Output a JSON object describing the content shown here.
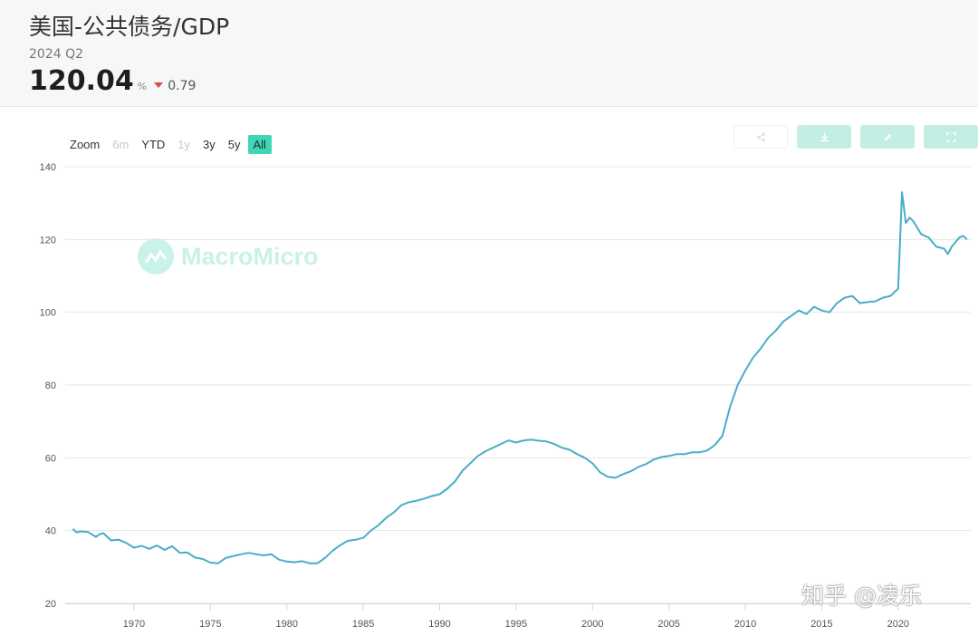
{
  "header": {
    "title": "美国-公共债务/GDP",
    "period": "2024 Q2",
    "value": "120.04",
    "unit": "%",
    "change": "0.79",
    "change_direction": "down",
    "change_color": "#e0483e"
  },
  "zoom": {
    "label": "Zoom",
    "options": [
      {
        "label": "6m",
        "enabled": false,
        "active": false
      },
      {
        "label": "YTD",
        "enabled": true,
        "active": false
      },
      {
        "label": "1y",
        "enabled": false,
        "active": false
      },
      {
        "label": "3y",
        "enabled": true,
        "active": false
      },
      {
        "label": "5y",
        "enabled": true,
        "active": false
      },
      {
        "label": "All",
        "enabled": true,
        "active": true
      }
    ],
    "active_color": "#3fd6b6"
  },
  "tools": [
    {
      "icon": "share-icon"
    },
    {
      "icon": "download-icon"
    },
    {
      "icon": "edit-icon"
    },
    {
      "icon": "fullscreen-icon"
    }
  ],
  "watermark": {
    "text": "MacroMicro"
  },
  "credit": "知乎 @凌乐",
  "chart_data": {
    "type": "line",
    "title": "",
    "xlabel": "",
    "ylabel": "",
    "xlim": [
      1965.5,
      2024.75
    ],
    "ylim": [
      20,
      140
    ],
    "yticks": [
      20,
      40,
      60,
      80,
      100,
      120,
      140
    ],
    "xticks": [
      1970,
      1975,
      1980,
      1985,
      1990,
      1995,
      2000,
      2005,
      2010,
      2015,
      2020
    ],
    "grid": "horizontal",
    "legend": "none",
    "series": [
      {
        "color": "#48aec6",
        "points": [
          [
            1966.0,
            40.5
          ],
          [
            1966.25,
            39.5
          ],
          [
            1966.5,
            39.8
          ],
          [
            1967.0,
            39.6
          ],
          [
            1967.5,
            38.3
          ],
          [
            1967.75,
            39.0
          ],
          [
            1968.0,
            39.3
          ],
          [
            1968.5,
            37.3
          ],
          [
            1969.0,
            37.5
          ],
          [
            1969.5,
            36.6
          ],
          [
            1970.0,
            35.3
          ],
          [
            1970.5,
            35.8
          ],
          [
            1971.0,
            35.0
          ],
          [
            1971.5,
            35.9
          ],
          [
            1972.0,
            34.7
          ],
          [
            1972.5,
            35.7
          ],
          [
            1973.0,
            33.9
          ],
          [
            1973.5,
            34.0
          ],
          [
            1974.0,
            32.6
          ],
          [
            1974.5,
            32.2
          ],
          [
            1975.0,
            31.2
          ],
          [
            1975.5,
            31.0
          ],
          [
            1976.0,
            32.5
          ],
          [
            1976.5,
            33.0
          ],
          [
            1977.0,
            33.5
          ],
          [
            1977.5,
            33.9
          ],
          [
            1978.0,
            33.5
          ],
          [
            1978.5,
            33.2
          ],
          [
            1979.0,
            33.5
          ],
          [
            1979.5,
            32.0
          ],
          [
            1980.0,
            31.5
          ],
          [
            1980.5,
            31.3
          ],
          [
            1981.0,
            31.6
          ],
          [
            1981.5,
            31.0
          ],
          [
            1982.0,
            31.0
          ],
          [
            1982.5,
            32.5
          ],
          [
            1983.0,
            34.5
          ],
          [
            1983.5,
            36.0
          ],
          [
            1984.0,
            37.2
          ],
          [
            1984.5,
            37.5
          ],
          [
            1985.0,
            38.0
          ],
          [
            1985.5,
            40.0
          ],
          [
            1986.0,
            41.5
          ],
          [
            1986.5,
            43.5
          ],
          [
            1987.0,
            45.0
          ],
          [
            1987.5,
            47.0
          ],
          [
            1988.0,
            47.8
          ],
          [
            1988.5,
            48.2
          ],
          [
            1989.0,
            48.8
          ],
          [
            1989.5,
            49.5
          ],
          [
            1990.0,
            50.0
          ],
          [
            1990.5,
            51.5
          ],
          [
            1991.0,
            53.5
          ],
          [
            1991.5,
            56.5
          ],
          [
            1992.0,
            58.5
          ],
          [
            1992.5,
            60.5
          ],
          [
            1993.0,
            61.8
          ],
          [
            1993.5,
            62.8
          ],
          [
            1994.0,
            63.8
          ],
          [
            1994.5,
            64.8
          ],
          [
            1995.0,
            64.2
          ],
          [
            1995.5,
            64.8
          ],
          [
            1996.0,
            65.0
          ],
          [
            1996.5,
            64.7
          ],
          [
            1997.0,
            64.5
          ],
          [
            1997.5,
            63.8
          ],
          [
            1998.0,
            62.8
          ],
          [
            1998.5,
            62.2
          ],
          [
            1999.0,
            61.0
          ],
          [
            1999.5,
            60.0
          ],
          [
            2000.0,
            58.5
          ],
          [
            2000.5,
            56.0
          ],
          [
            2001.0,
            54.8
          ],
          [
            2001.5,
            54.5
          ],
          [
            2002.0,
            55.5
          ],
          [
            2002.5,
            56.3
          ],
          [
            2003.0,
            57.5
          ],
          [
            2003.5,
            58.3
          ],
          [
            2004.0,
            59.5
          ],
          [
            2004.5,
            60.2
          ],
          [
            2005.0,
            60.5
          ],
          [
            2005.5,
            61.0
          ],
          [
            2006.0,
            61.0
          ],
          [
            2006.5,
            61.5
          ],
          [
            2007.0,
            61.5
          ],
          [
            2007.5,
            62.0
          ],
          [
            2008.0,
            63.5
          ],
          [
            2008.5,
            66.0
          ],
          [
            2009.0,
            74.0
          ],
          [
            2009.5,
            80.0
          ],
          [
            2010.0,
            84.0
          ],
          [
            2010.5,
            87.5
          ],
          [
            2011.0,
            90.0
          ],
          [
            2011.5,
            93.0
          ],
          [
            2012.0,
            95.0
          ],
          [
            2012.5,
            97.5
          ],
          [
            2013.0,
            99.0
          ],
          [
            2013.5,
            100.5
          ],
          [
            2014.0,
            99.5
          ],
          [
            2014.5,
            101.5
          ],
          [
            2015.0,
            100.5
          ],
          [
            2015.5,
            100.0
          ],
          [
            2016.0,
            102.5
          ],
          [
            2016.5,
            104.0
          ],
          [
            2017.0,
            104.5
          ],
          [
            2017.5,
            102.5
          ],
          [
            2018.0,
            102.8
          ],
          [
            2018.5,
            103.0
          ],
          [
            2019.0,
            104.0
          ],
          [
            2019.5,
            104.5
          ],
          [
            2019.75,
            105.5
          ],
          [
            2020.0,
            106.5
          ],
          [
            2020.25,
            133.0
          ],
          [
            2020.5,
            124.5
          ],
          [
            2020.75,
            126.0
          ],
          [
            2021.0,
            125.0
          ],
          [
            2021.5,
            121.5
          ],
          [
            2022.0,
            120.5
          ],
          [
            2022.5,
            118.0
          ],
          [
            2023.0,
            117.5
          ],
          [
            2023.25,
            116.0
          ],
          [
            2023.5,
            118.0
          ],
          [
            2024.0,
            120.5
          ],
          [
            2024.25,
            121.0
          ],
          [
            2024.5,
            120.04
          ]
        ]
      }
    ]
  }
}
